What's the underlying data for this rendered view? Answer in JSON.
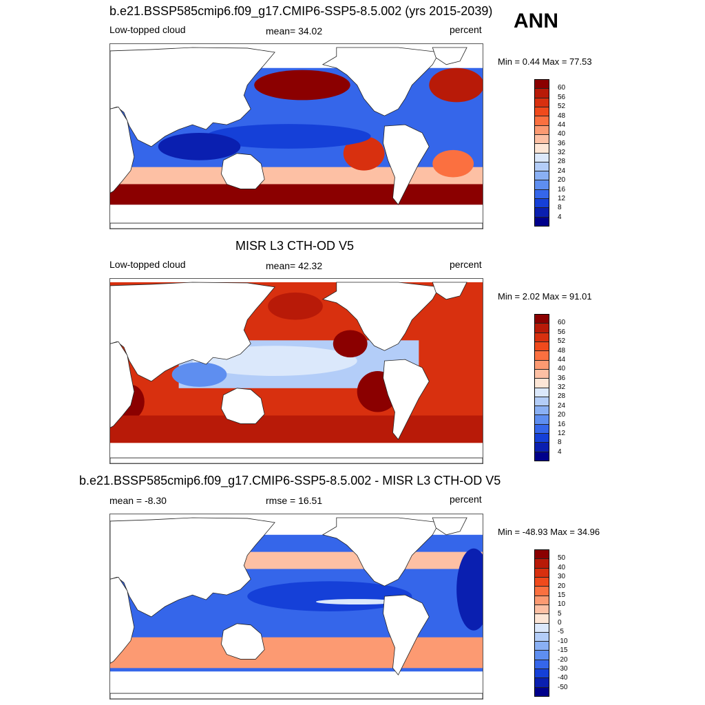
{
  "annotation": "ANN",
  "panels": [
    {
      "title": "b.e21.BSSP585cmip6.f09_g17.CMIP6-SSP5-8.5.002 (yrs 2015-2039)",
      "left_label": "Low-topped cloud",
      "center_label": "mean=  34.02",
      "right_label": "percent",
      "minmax": "Min =   0.44 Max =  77.53",
      "colorbar": {
        "labels": [
          "60",
          "56",
          "52",
          "48",
          "44",
          "40",
          "36",
          "32",
          "28",
          "24",
          "20",
          "16",
          "12",
          "8",
          "4"
        ],
        "colors": [
          "#8b0000",
          "#b81a08",
          "#d8300f",
          "#f04a1c",
          "#fb7040",
          "#fc9a72",
          "#fdc0a4",
          "#fde6d6",
          "#dbe8fb",
          "#b3cdf8",
          "#8ab0f4",
          "#5e8ef0",
          "#3566ea",
          "#1540d8",
          "#0a1fb0",
          "#00008b"
        ]
      },
      "map": {
        "style": "model"
      }
    },
    {
      "title": "MISR L3 CTH-OD V5",
      "left_label": "Low-topped cloud",
      "center_label": "mean=  42.32",
      "right_label": "percent",
      "minmax": "Min =   2.02 Max =  91.01",
      "colorbar": {
        "labels": [
          "60",
          "56",
          "52",
          "48",
          "44",
          "40",
          "36",
          "32",
          "28",
          "24",
          "20",
          "16",
          "12",
          "8",
          "4"
        ],
        "colors": [
          "#8b0000",
          "#b81a08",
          "#d8300f",
          "#f04a1c",
          "#fb7040",
          "#fc9a72",
          "#fdc0a4",
          "#fde6d6",
          "#dbe8fb",
          "#b3cdf8",
          "#8ab0f4",
          "#5e8ef0",
          "#3566ea",
          "#1540d8",
          "#0a1fb0",
          "#00008b"
        ]
      },
      "map": {
        "style": "obs"
      }
    },
    {
      "title": "b.e21.BSSP585cmip6.f09_g17.CMIP6-SSP5-8.5.002 - MISR L3 CTH-OD V5",
      "left_label": "mean =  -8.30",
      "center_label": "rmse =  16.51",
      "right_label": "percent",
      "minmax": "Min = -48.93 Max =  34.96",
      "colorbar": {
        "labels": [
          "50",
          "40",
          "30",
          "20",
          "15",
          "10",
          "5",
          "0",
          "-5",
          "-10",
          "-15",
          "-20",
          "-30",
          "-40",
          "-50"
        ],
        "colors": [
          "#8b0000",
          "#b81a08",
          "#d8300f",
          "#f04a1c",
          "#fb7040",
          "#fc9a72",
          "#fdc0a4",
          "#fde6d6",
          "#dbe8fb",
          "#b3cdf8",
          "#8ab0f4",
          "#5e8ef0",
          "#3566ea",
          "#1540d8",
          "#0a1fb0",
          "#00008b"
        ]
      },
      "map": {
        "style": "diff"
      }
    }
  ]
}
